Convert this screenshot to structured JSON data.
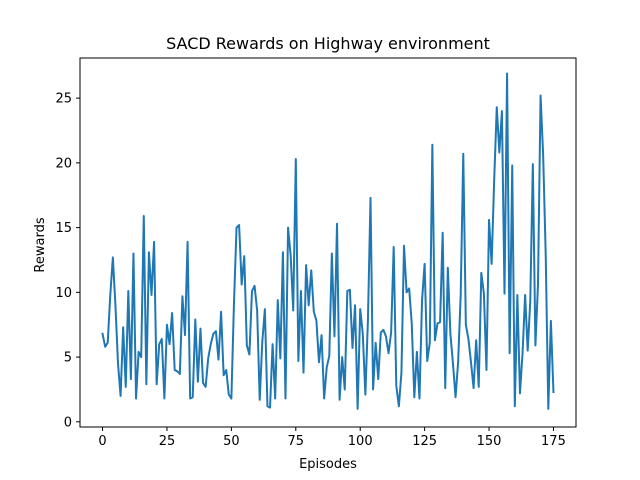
{
  "chart_data": {
    "type": "line",
    "title": "SACD Rewards on Highway environment",
    "xlabel": "Episodes",
    "ylabel": "Rewards",
    "xlim": [
      -8.75,
      183.75
    ],
    "ylim": [
      -0.4,
      28.1
    ],
    "grid": false,
    "x_ticks": [
      0,
      25,
      50,
      75,
      100,
      125,
      150,
      175
    ],
    "y_ticks": [
      0,
      5,
      10,
      15,
      20,
      25
    ],
    "x_tick_labels": [
      "0",
      "25",
      "50",
      "75",
      "100",
      "125",
      "150",
      "175"
    ],
    "y_tick_labels": [
      "0",
      "5",
      "10",
      "15",
      "20",
      "25"
    ],
    "colors": {
      "line": "#1f77b4",
      "axes": "#000000",
      "background": "#ffffff"
    },
    "series": [
      {
        "values": [
          6.8,
          5.8,
          6.1,
          9.8,
          12.7,
          9.0,
          4.5,
          2.0,
          7.3,
          2.7,
          10.1,
          3.3,
          13.0,
          1.8,
          5.4,
          5.0,
          15.9,
          2.9,
          13.1,
          9.8,
          13.9,
          2.9,
          6.0,
          6.4,
          1.8,
          7.5,
          6.0,
          8.4,
          4.0,
          3.9,
          3.7,
          9.7,
          6.7,
          13.9,
          1.8,
          1.9,
          7.9,
          3.1,
          7.2,
          3.0,
          2.7,
          4.9,
          6.0,
          6.8,
          7.0,
          4.8,
          8.5,
          3.6,
          4.0,
          2.1,
          1.8,
          9.1,
          15.0,
          15.2,
          10.6,
          12.8,
          5.9,
          5.2,
          10.1,
          10.5,
          8.6,
          1.7,
          6.2,
          8.7,
          1.2,
          1.1,
          6.0,
          1.8,
          9.4,
          4.9,
          13.1,
          1.8,
          15.0,
          12.9,
          8.6,
          20.3,
          4.7,
          10.1,
          3.8,
          12.1,
          9.0,
          11.7,
          8.5,
          7.8,
          4.6,
          6.7,
          1.8,
          4.2,
          5.1,
          13.0,
          6.6,
          15.3,
          1.7,
          5.0,
          2.5,
          10.1,
          10.2,
          5.7,
          9.0,
          1.0,
          8.7,
          6.8,
          2.1,
          7.9,
          17.3,
          2.5,
          6.1,
          3.3,
          6.9,
          7.1,
          6.6,
          5.3,
          6.9,
          13.5,
          2.8,
          1.2,
          3.8,
          13.6,
          10.0,
          10.3,
          7.6,
          1.9,
          5.4,
          1.8,
          9.4,
          12.2,
          4.7,
          6.1,
          21.4,
          6.3,
          7.6,
          7.7,
          14.6,
          2.6,
          11.9,
          6.8,
          4.5,
          1.9,
          4.6,
          9.8,
          20.7,
          7.5,
          6.4,
          4.6,
          2.6,
          6.3,
          2.7,
          11.5,
          9.9,
          4.0,
          15.6,
          12.2,
          18.7,
          24.3,
          20.8,
          24.0,
          9.9,
          26.9,
          5.3,
          19.8,
          1.2,
          9.8,
          2.2,
          5.3,
          9.8,
          5.5,
          9.3,
          19.9,
          5.9,
          10.6,
          25.2,
          20.6,
          12.9,
          1.0,
          7.8,
          2.3
        ]
      }
    ]
  }
}
